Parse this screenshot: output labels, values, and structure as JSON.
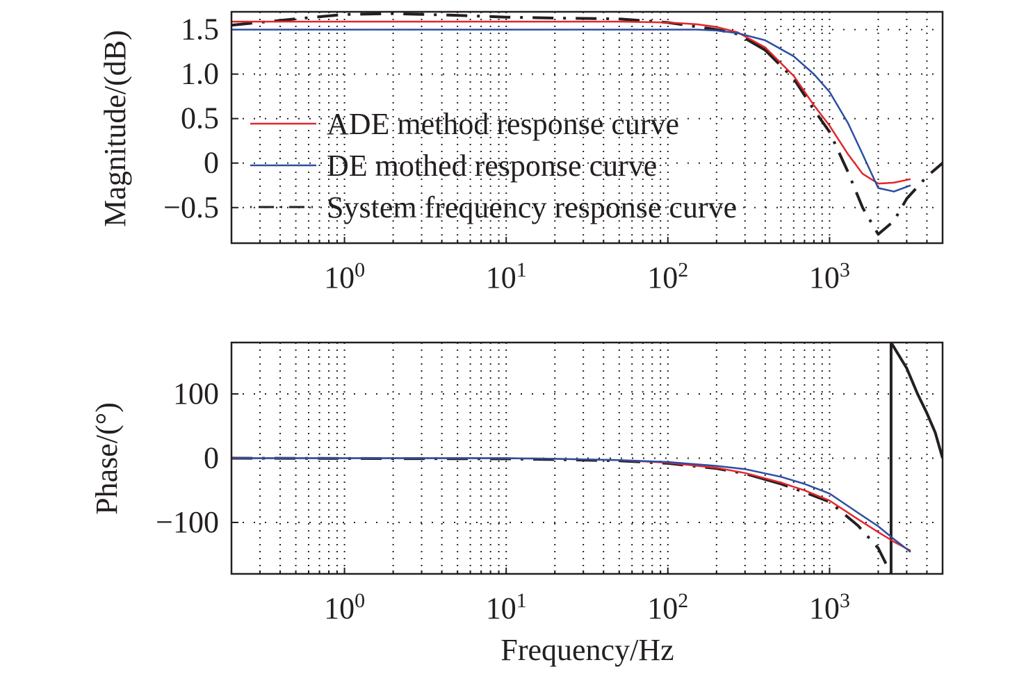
{
  "chart_data": [
    {
      "type": "line",
      "panel": "magnitude",
      "ylabel": "Magnitude/(dB)",
      "xlabel": "",
      "xscale": "log",
      "xlim": [
        0.2,
        5000
      ],
      "ylim": [
        -0.9,
        1.7
      ],
      "yticks": [
        1.5,
        1.0,
        0.5,
        0,
        -0.5
      ],
      "ytick_labels": [
        "1.5",
        "1.0",
        "0.5",
        "0",
        "−0.5"
      ],
      "xticks": [
        1,
        10,
        100,
        1000
      ],
      "xtick_labels": [
        {
          "base": "10",
          "exp": "0"
        },
        {
          "base": "10",
          "exp": "1"
        },
        {
          "base": "10",
          "exp": "2"
        },
        {
          "base": "10",
          "exp": "3"
        }
      ],
      "grid": "dotted",
      "legend": {
        "placement": "center-left",
        "entries": [
          "ADE method response curve",
          "DE mothed response curve",
          "System frequency response curve"
        ]
      },
      "series": [
        {
          "name": "ADE method response curve",
          "color": "#e3262b",
          "style": "solid",
          "segments": [
            {
              "x": [
                0.2,
                1,
                10,
                50,
                100,
                150,
                200,
                270,
                400,
                600,
                800,
                1000,
                1300,
                1600,
                2000,
                2500,
                3170
              ],
              "y": [
                1.59,
                1.59,
                1.59,
                1.59,
                1.58,
                1.56,
                1.53,
                1.47,
                1.3,
                0.98,
                0.65,
                0.42,
                0.1,
                -0.12,
                -0.23,
                -0.22,
                -0.18
              ]
            }
          ]
        },
        {
          "name": "DE mothed response curve",
          "color": "#2b4ea2",
          "style": "solid",
          "segments": [
            {
              "x": [
                0.2,
                1,
                10,
                100,
                150,
                200,
                270,
                400,
                600,
                800,
                1000,
                1300,
                1600,
                2000,
                2500,
                3170
              ],
              "y": [
                1.5,
                1.5,
                1.5,
                1.5,
                1.5,
                1.49,
                1.46,
                1.38,
                1.2,
                1.0,
                0.8,
                0.45,
                0.1,
                -0.28,
                -0.32,
                -0.25
              ]
            }
          ]
        },
        {
          "name": "System frequency response curve",
          "color": "#231f20",
          "style": "dashdot",
          "segments": [
            {
              "x": [
                0.2,
                0.5,
                1,
                2,
                5,
                10,
                20,
                50,
                100,
                200,
                270,
                400,
                600,
                800,
                1000,
                1300,
                1600,
                2000,
                2500,
                3000,
                4000,
                5000
              ],
              "y": [
                1.55,
                1.62,
                1.67,
                1.68,
                1.66,
                1.64,
                1.63,
                1.62,
                1.58,
                1.5,
                1.45,
                1.27,
                0.95,
                0.6,
                0.35,
                -0.1,
                -0.5,
                -0.8,
                -0.65,
                -0.4,
                -0.15,
                0.0
              ]
            }
          ]
        }
      ]
    },
    {
      "type": "line",
      "panel": "phase",
      "ylabel": "Phase/(°)",
      "xlabel": "Frequency/Hz",
      "xscale": "log",
      "xlim": [
        0.2,
        5000
      ],
      "ylim": [
        -180,
        180
      ],
      "yticks": [
        100,
        0,
        -100
      ],
      "ytick_labels": [
        "100",
        "0",
        "−100"
      ],
      "xticks": [
        1,
        10,
        100,
        1000
      ],
      "xtick_labels": [
        {
          "base": "10",
          "exp": "0"
        },
        {
          "base": "10",
          "exp": "1"
        },
        {
          "base": "10",
          "exp": "2"
        },
        {
          "base": "10",
          "exp": "3"
        }
      ],
      "grid": "dotted",
      "series": [
        {
          "name": "ADE method response curve",
          "color": "#e3262b",
          "style": "solid",
          "segments": [
            {
              "x": [
                0.2,
                10,
                20,
                50,
                100,
                200,
                300,
                500,
                700,
                1000,
                1500,
                2000,
                2500,
                3170
              ],
              "y": [
                0,
                0,
                -1,
                -3,
                -7,
                -15,
                -23,
                -38,
                -50,
                -66,
                -95,
                -115,
                -130,
                -144
              ]
            }
          ]
        },
        {
          "name": "DE mothed response curve",
          "color": "#2b4ea2",
          "style": "solid",
          "segments": [
            {
              "x": [
                0.2,
                10,
                20,
                50,
                100,
                200,
                300,
                500,
                700,
                1000,
                1500,
                2000,
                2500,
                3170
              ],
              "y": [
                0,
                0,
                -1,
                -3,
                -6,
                -12,
                -17,
                -29,
                -40,
                -55,
                -85,
                -106,
                -126,
                -146
              ]
            }
          ]
        },
        {
          "name": "System frequency response curve",
          "color": "#231f20",
          "style": "dashdot",
          "segments": [
            {
              "x": [
                0.2,
                10,
                20,
                50,
                100,
                200,
                300,
                500,
                700,
                1000,
                1500,
                2000,
                2400
              ],
              "y": [
                0,
                -1,
                -2,
                -4,
                -8,
                -16,
                -24,
                -40,
                -53,
                -68,
                -105,
                -140,
                -180
              ]
            },
            {
              "x": [
                2400,
                2400
              ],
              "y": [
                -180,
                180
              ]
            },
            {
              "x": [
                2400,
                3000,
                3500,
                4000,
                4500,
                5000
              ],
              "y": [
                180,
                140,
                100,
                70,
                40,
                0
              ]
            }
          ]
        }
      ]
    }
  ]
}
